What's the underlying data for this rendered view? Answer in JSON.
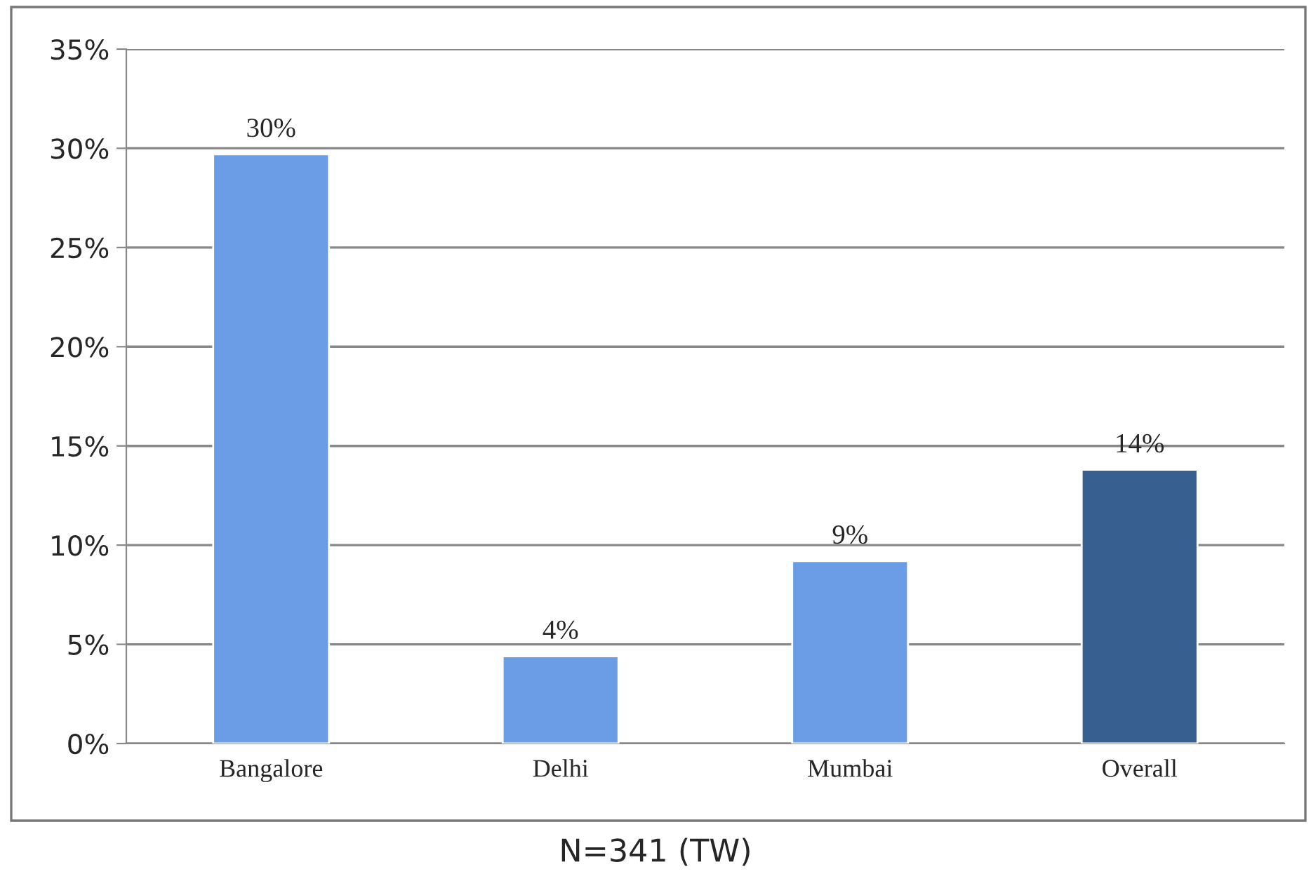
{
  "chart_data": {
    "type": "bar",
    "categories": [
      "Bangalore",
      "Delhi",
      "Mumbai",
      "Overall"
    ],
    "values": [
      29.7,
      4.4,
      9.2,
      13.8
    ],
    "value_labels": [
      "30%",
      "4%",
      "9%",
      "14%"
    ],
    "colors": [
      "#6a9de6",
      "#6a9de6",
      "#6a9de6",
      "#375f8f"
    ],
    "ylim": [
      0,
      35
    ],
    "yticks": [
      {
        "value": 0,
        "label": "0%"
      },
      {
        "value": 5,
        "label": "5%"
      },
      {
        "value": 10,
        "label": "10%"
      },
      {
        "value": 15,
        "label": "15%"
      },
      {
        "value": 20,
        "label": "20%"
      },
      {
        "value": 25,
        "label": "25%"
      },
      {
        "value": 30,
        "label": "30%"
      },
      {
        "value": 35,
        "label": "35%"
      }
    ],
    "grid": "y",
    "annotations": [
      "N=341 (TW)"
    ]
  }
}
